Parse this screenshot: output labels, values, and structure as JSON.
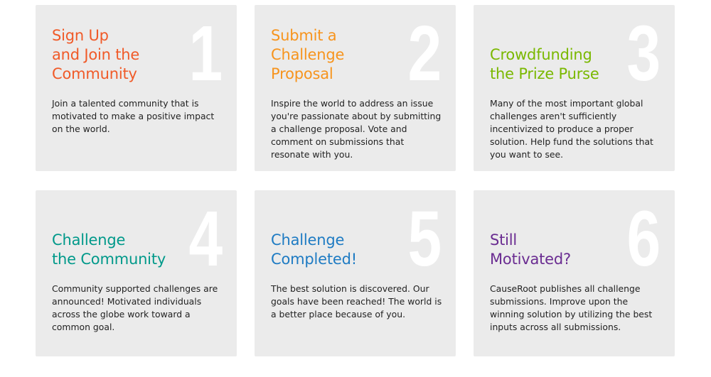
{
  "cards": [
    {
      "number": "1",
      "title": "Sign Up\nand Join the\nCommunity",
      "body": "Join a talented community that is motivated to make a positive impact on the world.",
      "title_color": "#f05a28"
    },
    {
      "number": "2",
      "title": "Submit a\nChallenge\nProposal",
      "body": "Inspire the world to address an issue you're passionate about by submitting a challenge proposal. Vote and comment on submissions that resonate with you.",
      "title_color": "#f7941d"
    },
    {
      "number": "3",
      "title": "Crowdfunding\nthe Prize Purse",
      "body": "Many of the most important global challenges aren't sufficiently incentivized to produce a proper solution. Help fund the solutions that you want to see.",
      "title_color": "#7ab800"
    },
    {
      "number": "4",
      "title": "Challenge\nthe Community",
      "body": "Community supported challenges are announced! Motivated individuals across the globe work toward a common goal.",
      "title_color": "#00998a"
    },
    {
      "number": "5",
      "title": "Challenge\nCompleted!",
      "body": "The best solution is discovered. Our goals have been reached! The world is a better place because of you.",
      "title_color": "#1e7bc3"
    },
    {
      "number": "6",
      "title": "Still\nMotivated?",
      "body": "CauseRoot publishes all challenge submissions. Improve upon the winning solution by utilizing the best inputs across all submissions.",
      "title_color": "#6a2c91"
    }
  ]
}
